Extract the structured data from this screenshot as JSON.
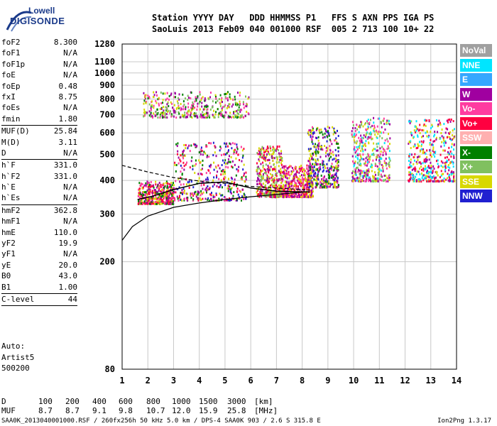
{
  "logo": {
    "line1": "Lowell",
    "line2": "DIGISONDE"
  },
  "header": {
    "row1": "Station YYYY DAY   DDD HHMMSS P1   FFS S AXN PPS IGA PS",
    "row2": "SaoLuis 2013 Feb09 040 001000 RSF  005 2 713 100 10+ 22"
  },
  "params": [
    {
      "name": "foF2",
      "value": "8.300"
    },
    {
      "name": "foF1",
      "value": "N/A"
    },
    {
      "name": "foF1p",
      "value": "N/A"
    },
    {
      "name": "foE",
      "value": "N/A"
    },
    {
      "name": "foEp",
      "value": "0.48"
    },
    {
      "name": "fxI",
      "value": "8.75"
    },
    {
      "name": "foEs",
      "value": "N/A"
    },
    {
      "name": "fmin",
      "value": "1.80"
    },
    {
      "sep": true
    },
    {
      "name": "MUF(D)",
      "value": "25.84"
    },
    {
      "name": "M(D)",
      "value": "3.11"
    },
    {
      "name": "D",
      "value": "N/A"
    },
    {
      "sep": true
    },
    {
      "name": "h`F",
      "value": "331.0"
    },
    {
      "name": "h`F2",
      "value": "331.0"
    },
    {
      "name": "h`E",
      "value": "N/A"
    },
    {
      "name": "h`Es",
      "value": "N/A"
    },
    {
      "sep": true
    },
    {
      "name": "hmF2",
      "value": "362.8"
    },
    {
      "name": "hmF1",
      "value": "N/A"
    },
    {
      "name": "hmE",
      "value": "110.0"
    },
    {
      "name": "yF2",
      "value": "19.9"
    },
    {
      "name": "yF1",
      "value": "N/A"
    },
    {
      "name": "yE",
      "value": "20.0"
    },
    {
      "name": "B0",
      "value": "43.0"
    },
    {
      "name": "B1",
      "value": "1.00"
    },
    {
      "sep": true
    },
    {
      "name": "C-level",
      "value": "44"
    },
    {
      "sep": true
    }
  ],
  "notes": [
    "Auto:",
    "Artist5",
    "500200"
  ],
  "muf_table": {
    "d_label": "D",
    "d_values": [
      "100",
      "200",
      "400",
      "600",
      "800",
      "1000",
      "1500",
      "3000"
    ],
    "d_unit": "[km]",
    "muf_label": "MUF",
    "muf_values": [
      "8.7",
      "8.7",
      "9.1",
      "9.8",
      "10.7",
      "12.0",
      "15.9",
      "25.8"
    ],
    "muf_unit": "[MHz]"
  },
  "footer": "SAA0K_2013040001000.RSF / 260fx256h 50 kHz 5.0 km / DPS-4 SAA0K 903 / 2.6 S 315.8 E",
  "footer_right": "Ion2Png 1.3.17",
  "legend": [
    {
      "label": "NoVal",
      "color": "#a0a0a0"
    },
    {
      "label": "NNE",
      "color": "#00e5ff"
    },
    {
      "label": "E",
      "color": "#35a7ff"
    },
    {
      "label": "W",
      "color": "#a000a0"
    },
    {
      "label": "Vo-",
      "color": "#ff3ca0"
    },
    {
      "label": "Vo+",
      "color": "#ff0040"
    },
    {
      "label": "SSW",
      "color": "#ffb0b0"
    },
    {
      "label": "X-",
      "color": "#008000"
    },
    {
      "label": "X+",
      "color": "#80c060"
    },
    {
      "label": "SSE",
      "color": "#d8d800"
    },
    {
      "label": "NNW",
      "color": "#2020d0"
    }
  ],
  "chart_data": {
    "type": "scatter",
    "title": "",
    "xlabel": "",
    "ylabel": "",
    "xlim": [
      1,
      14
    ],
    "ylim": [
      80,
      1280
    ],
    "y_scale": "log",
    "grid": true,
    "x_ticks": [
      "1",
      "2",
      "3",
      "4",
      "5",
      "6",
      "7",
      "8",
      "9",
      "10",
      "11",
      "12",
      "13",
      "14"
    ],
    "y_ticks": [
      "80",
      "200",
      "300",
      "400",
      "500",
      "600",
      "700",
      "800",
      "900",
      "1000",
      "1100",
      "1280"
    ],
    "clusters": [
      {
        "x": [
          1.6,
          3.0
        ],
        "y": [
          330,
          400
        ],
        "colors": [
          "Vo+",
          "Vo-",
          "X-",
          "W",
          "SSE"
        ]
      },
      {
        "x": [
          3.0,
          5.8
        ],
        "y": [
          340,
          560
        ],
        "colors": [
          "W",
          "Vo-",
          "Vo+",
          "NNW",
          "X-",
          "SSE"
        ]
      },
      {
        "x": [
          6.2,
          7.2
        ],
        "y": [
          350,
          540
        ],
        "colors": [
          "Vo+",
          "W",
          "SSE",
          "X+"
        ]
      },
      {
        "x": [
          7.2,
          8.4
        ],
        "y": [
          350,
          460
        ],
        "colors": [
          "Vo+",
          "Vo-",
          "W",
          "SSE"
        ]
      },
      {
        "x": [
          8.2,
          9.4
        ],
        "y": [
          380,
          640
        ],
        "colors": [
          "SSE",
          "W",
          "Vo-",
          "NNW",
          "X-"
        ]
      },
      {
        "x": [
          9.9,
          11.4
        ],
        "y": [
          400,
          690
        ],
        "colors": [
          "NNE",
          "X+",
          "W",
          "Vo-",
          "SSE"
        ]
      },
      {
        "x": [
          12.1,
          13.9
        ],
        "y": [
          400,
          680
        ],
        "colors": [
          "NNE",
          "W",
          "Vo+",
          "SSE"
        ]
      },
      {
        "x": [
          1.8,
          5.9
        ],
        "y": [
          690,
          860
        ],
        "colors": [
          "SSE",
          "X+",
          "X-",
          "Vo-",
          "W"
        ]
      }
    ],
    "solid_curve": [
      {
        "x": 1.0,
        "y": 240
      },
      {
        "x": 1.4,
        "y": 270
      },
      {
        "x": 2.0,
        "y": 295
      },
      {
        "x": 3.0,
        "y": 318
      },
      {
        "x": 4.0,
        "y": 330
      },
      {
        "x": 5.0,
        "y": 340
      },
      {
        "x": 6.0,
        "y": 348
      },
      {
        "x": 7.0,
        "y": 355
      },
      {
        "x": 8.0,
        "y": 362
      },
      {
        "x": 8.3,
        "y": 363
      }
    ],
    "dashed_curve": [
      {
        "x": 1.0,
        "y": 455
      },
      {
        "x": 2.0,
        "y": 430
      },
      {
        "x": 3.0,
        "y": 410
      },
      {
        "x": 4.0,
        "y": 398
      },
      {
        "x": 5.0,
        "y": 390
      },
      {
        "x": 6.0,
        "y": 380
      },
      {
        "x": 7.0,
        "y": 375
      },
      {
        "x": 8.0,
        "y": 370
      },
      {
        "x": 8.3,
        "y": 368
      }
    ],
    "trace_curve": [
      {
        "x": 1.6,
        "y": 340
      },
      {
        "x": 2.2,
        "y": 350
      },
      {
        "x": 3.0,
        "y": 370
      },
      {
        "x": 4.0,
        "y": 390
      },
      {
        "x": 5.0,
        "y": 395
      },
      {
        "x": 6.0,
        "y": 375
      },
      {
        "x": 7.0,
        "y": 365
      },
      {
        "x": 8.0,
        "y": 363
      },
      {
        "x": 8.3,
        "y": 363
      }
    ]
  }
}
